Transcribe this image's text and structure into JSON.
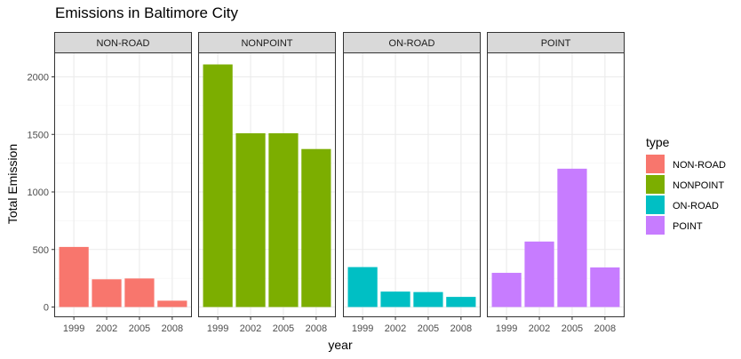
{
  "chart_data": {
    "type": "bar",
    "title": "Emissions in Baltimore City",
    "xlabel": "year",
    "ylabel": "Total Emission",
    "ylim": [
      0,
      2200
    ],
    "yticks": [
      0,
      500,
      1000,
      1500,
      2000
    ],
    "categories": [
      "1999",
      "2002",
      "2005",
      "2008"
    ],
    "facets": [
      {
        "name": "NON-ROAD",
        "color": "#F8766D",
        "values": [
          522,
          241,
          248,
          55
        ]
      },
      {
        "name": "NONPOINT",
        "color": "#7CAE00",
        "values": [
          2108,
          1510,
          1510,
          1373
        ]
      },
      {
        "name": "ON-ROAD",
        "color": "#00BFC4",
        "values": [
          347,
          134,
          130,
          88
        ]
      },
      {
        "name": "POINT",
        "color": "#C77CFF",
        "values": [
          297,
          569,
          1202,
          344
        ]
      }
    ],
    "legend": {
      "title": "type",
      "position": "right",
      "items": [
        "NON-ROAD",
        "NONPOINT",
        "ON-ROAD",
        "POINT"
      ]
    },
    "grid": true
  }
}
